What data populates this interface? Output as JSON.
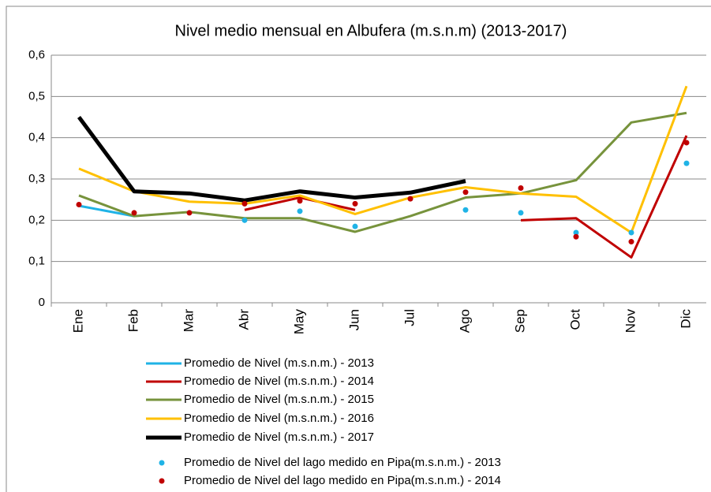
{
  "chart_data": {
    "type": "line",
    "title": "Nivel medio mensual en Albufera (m.s.n.m) (2013-2017)",
    "categories": [
      "Ene",
      "Feb",
      "Mar",
      "Abr",
      "May",
      "Jun",
      "Jul",
      "Ago",
      "Sep",
      "Oct",
      "Nov",
      "Dic"
    ],
    "ylim": [
      0,
      0.6
    ],
    "yticks": [
      0,
      {
        "value": 0.1,
        "label": "0,1"
      },
      {
        "value": 0.2,
        "label": "0,2"
      },
      {
        "value": 0.3,
        "label": "0,3"
      },
      {
        "value": 0.4,
        "label": "0,4"
      },
      {
        "value": 0.5,
        "label": "0,5"
      },
      {
        "value": 0.6,
        "label": "0,6"
      }
    ],
    "grid": true,
    "series": [
      {
        "name": "Promedio de Nivel (m.s.n.m.) - 2013",
        "color": "#1fb3e6",
        "mode": "line",
        "width": 3,
        "values": [
          0.235,
          0.21,
          null,
          null,
          null,
          null,
          null,
          null,
          null,
          null,
          null,
          null
        ]
      },
      {
        "name": "Promedio de Nivel (m.s.n.m.) - 2014",
        "color": "#c00000",
        "mode": "line",
        "width": 3,
        "values": [
          null,
          null,
          null,
          0.225,
          0.255,
          0.225,
          null,
          null,
          0.2,
          0.205,
          0.11,
          0.405
        ]
      },
      {
        "name": "Promedio de Nivel (m.s.n.m.) - 2015",
        "color": "#77933c",
        "mode": "line",
        "width": 3,
        "values": [
          0.26,
          0.21,
          0.22,
          0.205,
          0.205,
          0.172,
          0.21,
          0.255,
          0.265,
          0.297,
          0.437,
          0.46
        ]
      },
      {
        "name": "Promedio de Nivel (m.s.n.m.) - 2016",
        "color": "#ffc000",
        "mode": "line",
        "width": 3,
        "values": [
          0.325,
          0.27,
          0.245,
          0.24,
          0.26,
          0.215,
          0.255,
          0.28,
          0.265,
          0.257,
          0.17,
          0.525
        ]
      },
      {
        "name": "Promedio de Nivel (m.s.n.m.) - 2017",
        "color": "#000000",
        "mode": "line",
        "width": 5,
        "values": [
          0.45,
          0.27,
          0.265,
          0.248,
          0.27,
          0.255,
          0.267,
          0.295,
          null,
          null,
          null,
          null
        ]
      },
      {
        "name": "Promedio de Nivel del lago medido en Pipa(m.s.n.m.) - 2013",
        "color": "#1fb3e6",
        "mode": "marker",
        "values": [
          null,
          null,
          null,
          0.2,
          0.222,
          0.185,
          null,
          0.225,
          0.218,
          0.17,
          0.17,
          0.338
        ]
      },
      {
        "name": "Promedio de Nivel del lago medido en Pipa(m.s.n.m.) - 2014",
        "color": "#c00000",
        "mode": "marker",
        "values": [
          0.238,
          0.218,
          0.218,
          0.24,
          0.247,
          0.24,
          0.252,
          0.268,
          0.278,
          0.16,
          0.148,
          0.388
        ]
      }
    ]
  }
}
